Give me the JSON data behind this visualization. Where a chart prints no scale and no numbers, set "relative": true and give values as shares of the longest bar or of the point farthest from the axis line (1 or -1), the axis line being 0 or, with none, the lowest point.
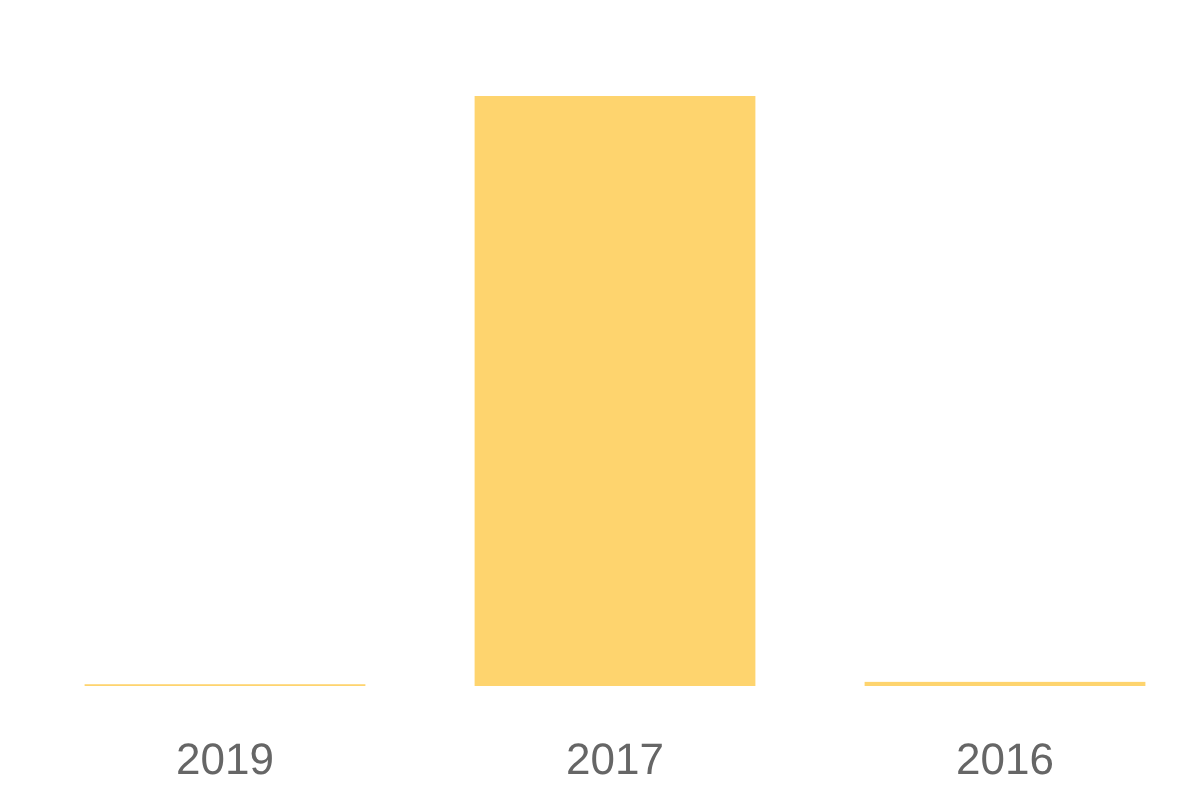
{
  "chart_data": {
    "type": "bar",
    "relative": true,
    "categories": [
      "2019",
      "2017",
      "2016"
    ],
    "values": [
      0.003,
      1,
      0.007
    ],
    "color": "#fed46e"
  }
}
